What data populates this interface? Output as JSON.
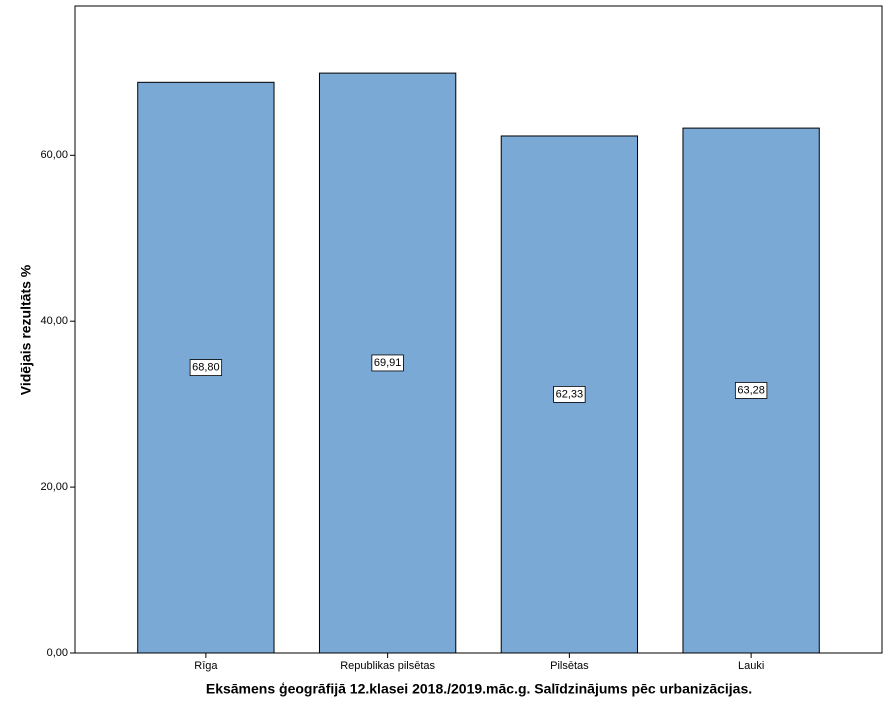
{
  "chart_data": {
    "type": "bar",
    "x_label": "Eksāmens ģeogrāfijā 12.klasei 2018./2019.māc.g. Salīdzinājums pēc urbanizācijas.",
    "y_label": "Vidējais rezultāts %",
    "categories": [
      "Rīga",
      "Republikas pilsētas",
      "Pilsētas",
      "Lauki"
    ],
    "values": [
      68.8,
      69.91,
      62.33,
      63.28
    ],
    "value_labels": [
      "68,80",
      "69,91",
      "62,33",
      "63,28"
    ],
    "color": "#7ba9d6",
    "ylim": [
      0,
      78
    ],
    "yticks": [
      {
        "value": 0,
        "label": "0,00"
      },
      {
        "value": 20,
        "label": "20,00"
      },
      {
        "value": 40,
        "label": "40,00"
      },
      {
        "value": 60,
        "label": "60,00"
      }
    ]
  }
}
